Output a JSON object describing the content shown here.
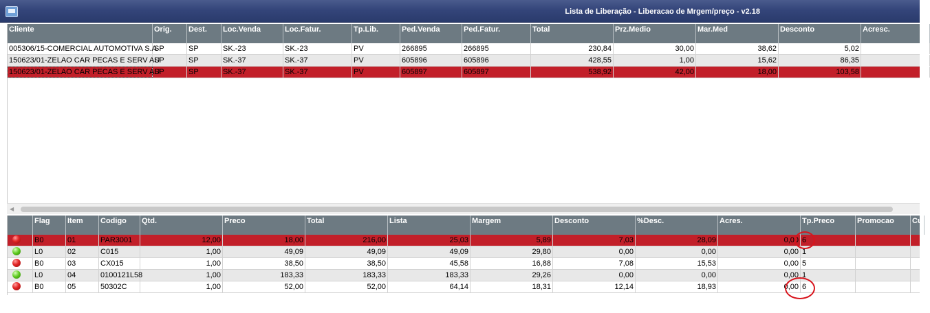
{
  "window": {
    "title": "Lista de Liberação - Liberacao de Mrgem/preço - v2.18"
  },
  "orders": {
    "columns": [
      "Cliente",
      "Orig.",
      "Dest.",
      "Loc.Venda",
      "Loc.Fatur.",
      "Tp.Lib.",
      "Ped.Venda",
      "Ped.Fatur.",
      "Total",
      "Prz.Medio",
      "Mar.Med",
      "Desconto",
      "Acresc."
    ],
    "rows": [
      [
        "005306/15-COMERCIAL AUTOMOTIVA S.A",
        "SP",
        "SP",
        "SK.-23",
        "SK.-23",
        "PV",
        "266895",
        "266895",
        "230,84",
        "30,00",
        "38,62",
        "5,02",
        ""
      ],
      [
        "150623/01-ZELAO CAR PECAS E SERV AU",
        "SP",
        "SP",
        "SK.-37",
        "SK.-37",
        "PV",
        "605896",
        "605896",
        "428,55",
        "1,00",
        "15,62",
        "86,35",
        ""
      ],
      [
        "150623/01-ZELAO CAR PECAS E SERV AU",
        "SP",
        "SP",
        "SK.-37",
        "SK.-37",
        "PV",
        "605897",
        "605897",
        "538,92",
        "42,00",
        "18,00",
        "103,58",
        ""
      ]
    ],
    "selected_row": 2
  },
  "items": {
    "columns": [
      "",
      "Flag",
      "Item",
      "Codigo",
      "Qtd.",
      "Preco",
      "Total",
      "Lista",
      "Margem",
      "Desconto",
      "%Desc.",
      "Acres.",
      "Tp.Preco",
      "Promocao",
      "Cu"
    ],
    "rows": [
      {
        "status": "red",
        "cells": [
          "B0",
          "01",
          "PAR3001",
          "12,00",
          "18,00",
          "216,00",
          "25,03",
          "5,89",
          "7,03",
          "28,09",
          "0,00",
          "6",
          ""
        ]
      },
      {
        "status": "green",
        "cells": [
          "L0",
          "02",
          "C015",
          "1,00",
          "49,09",
          "49,09",
          "49,09",
          "29,80",
          "0,00",
          "0,00",
          "0,00",
          "1",
          ""
        ]
      },
      {
        "status": "red",
        "cells": [
          "B0",
          "03",
          "CX015",
          "1,00",
          "38,50",
          "38,50",
          "45,58",
          "16,88",
          "7,08",
          "15,53",
          "0,00",
          "5",
          ""
        ]
      },
      {
        "status": "green",
        "cells": [
          "L0",
          "04",
          "0100121L58",
          "1,00",
          "183,33",
          "183,33",
          "183,33",
          "29,26",
          "0,00",
          "0,00",
          "0,00",
          "1",
          ""
        ]
      },
      {
        "status": "red",
        "cells": [
          "B0",
          "05",
          "50302C",
          "1,00",
          "52,00",
          "52,00",
          "64,14",
          "18,31",
          "12,14",
          "18,93",
          "0,00",
          "6",
          ""
        ]
      }
    ],
    "selected_row": 0
  },
  "colors": {
    "header": "#6d7a82",
    "selected": "#c21f29",
    "titlebar": "#34457a",
    "annotation": "#d8141c"
  },
  "icons": {
    "window": "app-window-icon",
    "scroll_left": "chevron-left-icon"
  }
}
